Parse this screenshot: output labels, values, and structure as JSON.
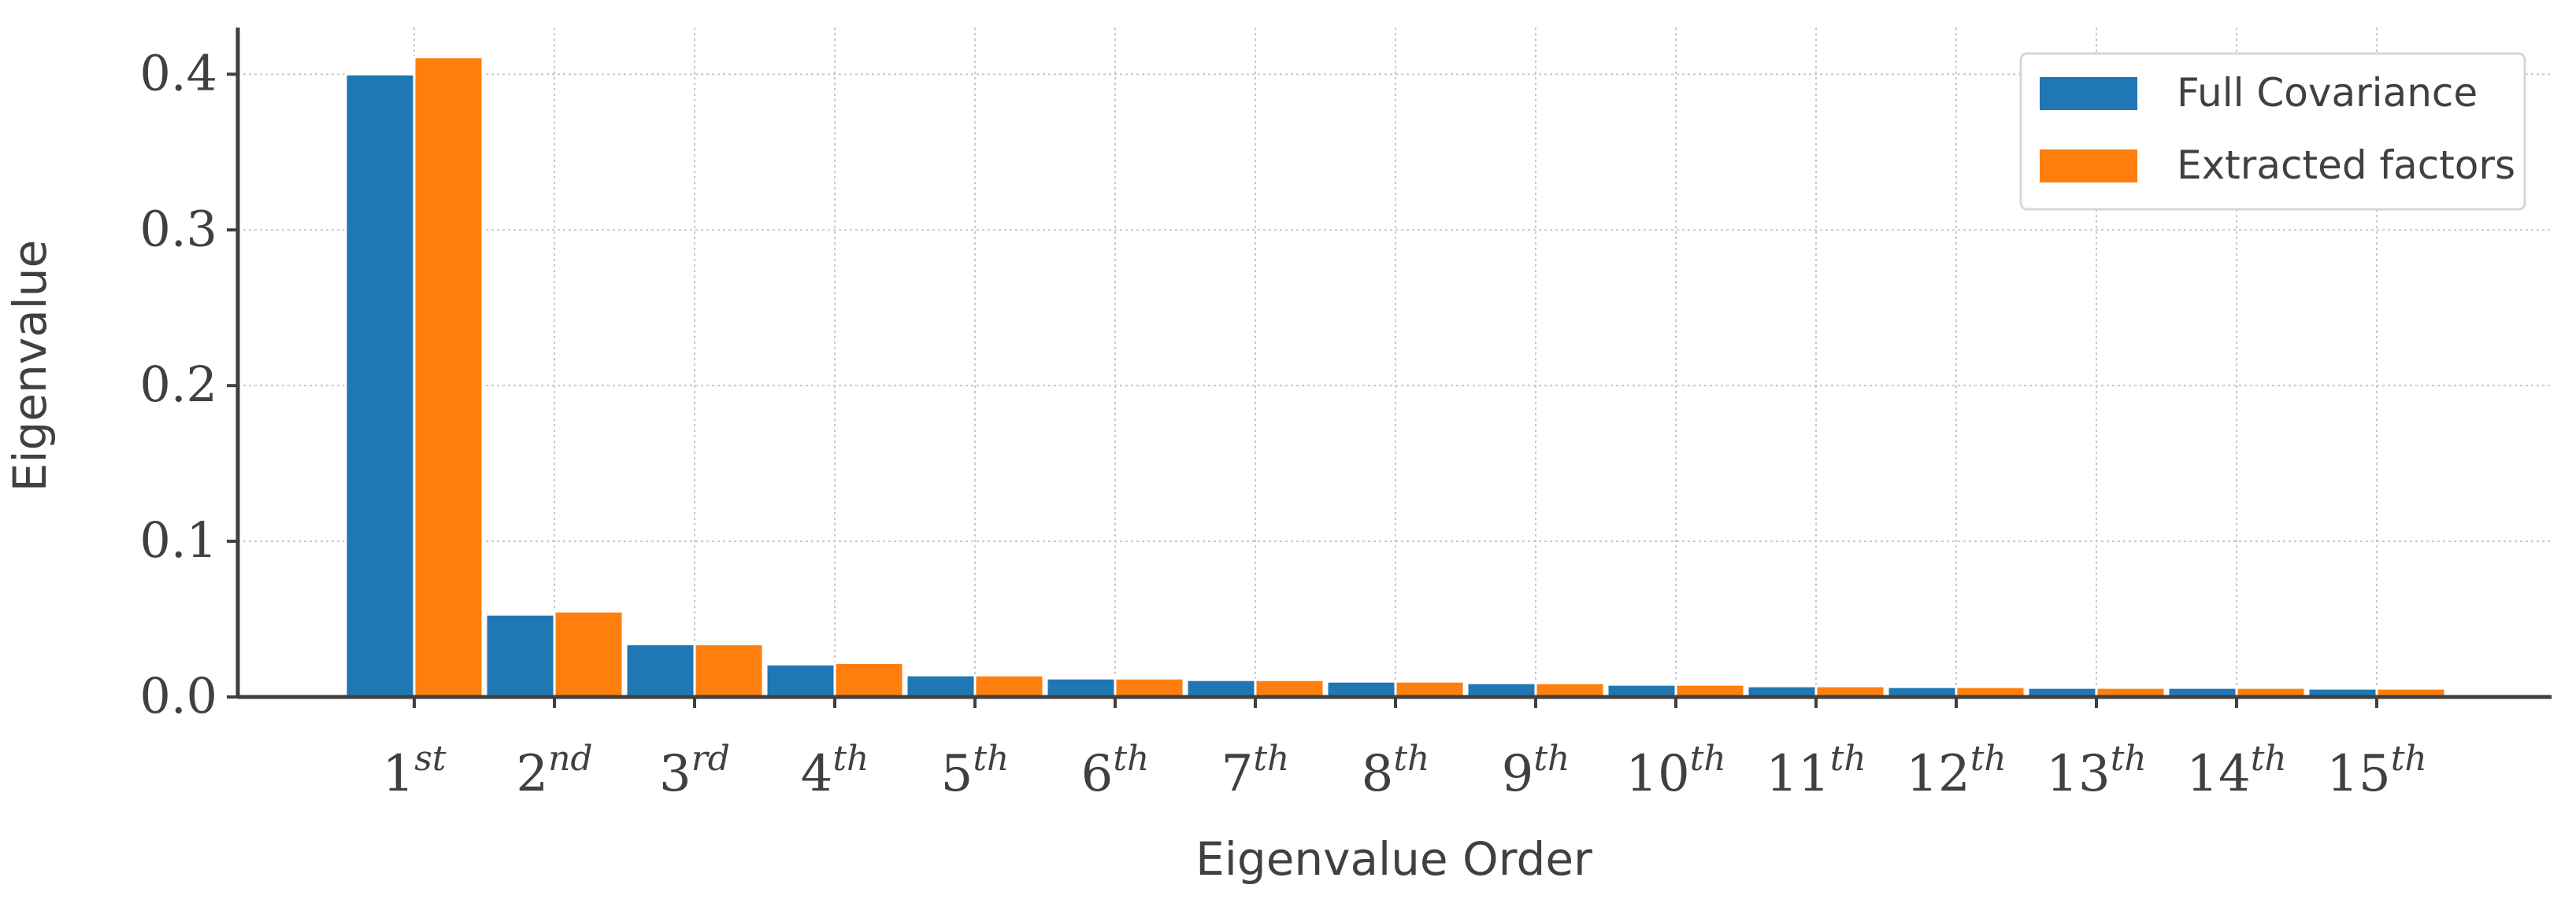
{
  "chart_data": {
    "type": "bar",
    "title": "",
    "xlabel": "Eigenvalue Order",
    "ylabel": "Eigenvalue",
    "categories": [
      {
        "base": "1",
        "sup": "st"
      },
      {
        "base": "2",
        "sup": "nd"
      },
      {
        "base": "3",
        "sup": "rd"
      },
      {
        "base": "4",
        "sup": "th"
      },
      {
        "base": "5",
        "sup": "th"
      },
      {
        "base": "6",
        "sup": "th"
      },
      {
        "base": "7",
        "sup": "th"
      },
      {
        "base": "8",
        "sup": "th"
      },
      {
        "base": "9",
        "sup": "th"
      },
      {
        "base": "10",
        "sup": "th"
      },
      {
        "base": "11",
        "sup": "th"
      },
      {
        "base": "12",
        "sup": "th"
      },
      {
        "base": "13",
        "sup": "th"
      },
      {
        "base": "14",
        "sup": "th"
      },
      {
        "base": "15",
        "sup": "th"
      }
    ],
    "series": [
      {
        "name": "Full Covariance",
        "color": "#1f77b4",
        "values": [
          0.4,
          0.053,
          0.034,
          0.021,
          0.014,
          0.012,
          0.011,
          0.01,
          0.009,
          0.008,
          0.007,
          0.0065,
          0.006,
          0.006,
          0.0055
        ]
      },
      {
        "name": "Extracted factors",
        "color": "#ff7f0e",
        "values": [
          0.411,
          0.055,
          0.034,
          0.022,
          0.014,
          0.012,
          0.011,
          0.01,
          0.009,
          0.008,
          0.007,
          0.0065,
          0.006,
          0.006,
          0.0055
        ]
      }
    ],
    "ylim": [
      0,
      0.43
    ],
    "yticks": [
      "0.0",
      "0.1",
      "0.2",
      "0.3",
      "0.4"
    ],
    "grid": true,
    "legend_position": "top-right"
  }
}
